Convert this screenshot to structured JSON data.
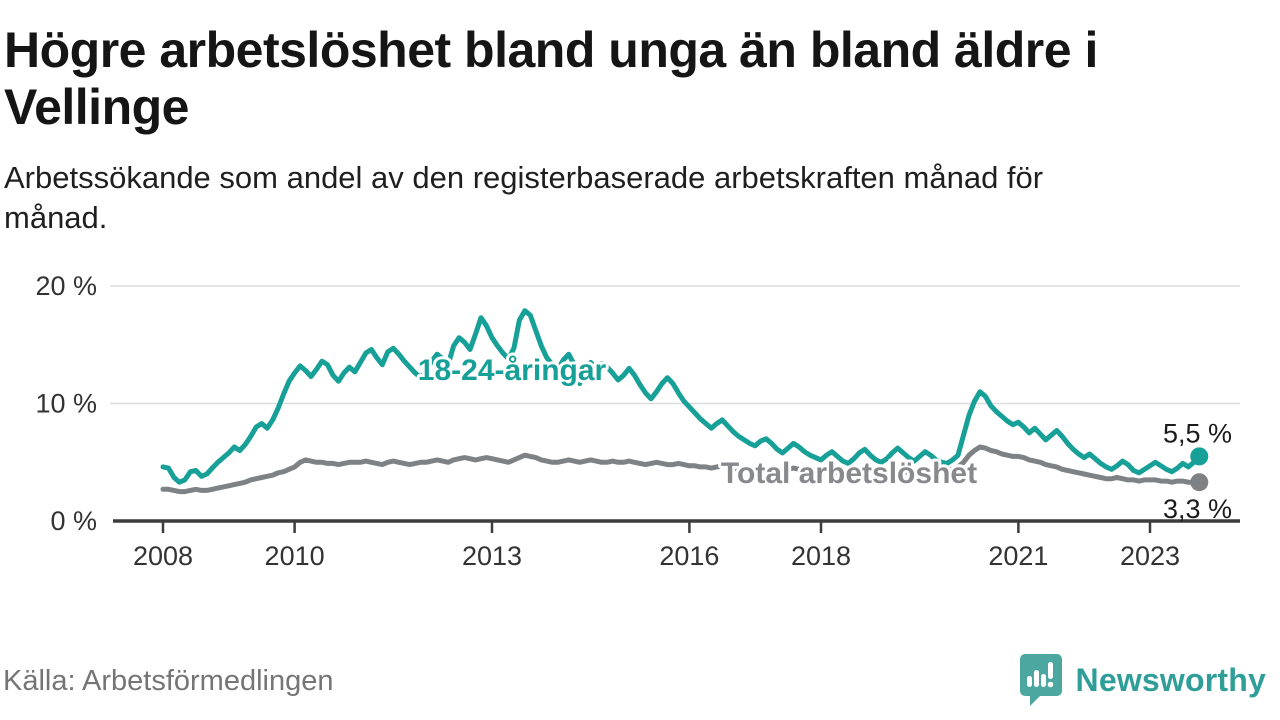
{
  "header": {
    "title": "Högre arbetslöshet bland unga än bland äldre i Vellinge",
    "subtitle": "Arbetssökande som andel av den registerbaserade arbetskraften månad för månad."
  },
  "footer": {
    "source": "Källa: Arbetsförmedlingen",
    "brand": "Newsworthy"
  },
  "colors": {
    "youth_line": "#16a098",
    "total_line": "#7f8285",
    "total_label": "#87898c",
    "grid": "#dcdcdc",
    "axis": "#3c3c3c",
    "axis_text": "#333333",
    "end_label_text": "#1b1b1b",
    "logo_icon": "#4da7a1",
    "logo_text": "#2f9e98"
  },
  "chart_data": {
    "type": "line",
    "title": "Högre arbetslöshet bland unga än bland äldre i Vellinge",
    "xlabel": "",
    "ylabel": "Arbetssökande som andel av den registerbaserade arbetskraften",
    "x_start": "2008-01",
    "x_end": "2023-10",
    "frequency": "monthly",
    "ylim": [
      0,
      22
    ],
    "grid": "horizontal",
    "legend_position": "inline-labels",
    "y_axis": {
      "ticks": [
        {
          "label": "20 %",
          "value": 20
        },
        {
          "label": "10 %",
          "value": 10
        },
        {
          "label": "0 %",
          "value": 0
        }
      ]
    },
    "x_axis": {
      "ticks": [
        2008,
        2010,
        2013,
        2016,
        2018,
        2021,
        2023
      ]
    },
    "series": [
      {
        "name": "18-24-åringar",
        "color": "#16a098",
        "end_label": "5,5 %",
        "end_value": 5.5,
        "values": [
          4.6,
          4.5,
          3.7,
          3.3,
          3.5,
          4.2,
          4.3,
          3.8,
          4.0,
          4.5,
          5.0,
          5.4,
          5.8,
          6.3,
          6.0,
          6.5,
          7.2,
          8.0,
          8.3,
          7.9,
          8.6,
          9.6,
          10.8,
          11.9,
          12.6,
          13.2,
          12.8,
          12.3,
          12.9,
          13.6,
          13.3,
          12.4,
          11.9,
          12.6,
          13.1,
          12.7,
          13.5,
          14.3,
          14.6,
          13.9,
          13.3,
          14.4,
          14.7,
          14.2,
          13.6,
          13.1,
          12.6,
          12.2,
          12.8,
          13.6,
          14.2,
          13.8,
          13.3,
          14.9,
          15.6,
          15.2,
          14.6,
          15.9,
          17.3,
          16.6,
          15.6,
          14.9,
          14.3,
          13.8,
          14.7,
          17.1,
          17.9,
          17.5,
          16.2,
          14.9,
          13.9,
          13.3,
          12.9,
          13.7,
          14.2,
          13.3,
          11.7,
          12.7,
          13.5,
          12.9,
          13.4,
          13.1,
          12.6,
          12.0,
          12.4,
          13.0,
          12.4,
          11.6,
          10.9,
          10.4,
          11.0,
          11.7,
          12.2,
          11.7,
          10.9,
          10.2,
          9.7,
          9.2,
          8.7,
          8.3,
          7.9,
          8.3,
          8.6,
          8.1,
          7.6,
          7.2,
          6.9,
          6.6,
          6.4,
          6.8,
          7.0,
          6.6,
          6.1,
          5.8,
          6.2,
          6.6,
          6.3,
          5.9,
          5.6,
          5.4,
          5.2,
          5.6,
          5.9,
          5.5,
          5.1,
          4.9,
          5.3,
          5.8,
          6.1,
          5.6,
          5.2,
          5.0,
          5.3,
          5.8,
          6.2,
          5.8,
          5.4,
          5.1,
          5.5,
          5.9,
          5.6,
          5.2,
          5.0,
          4.9,
          5.2,
          5.6,
          7.3,
          9.0,
          10.2,
          11.0,
          10.6,
          9.8,
          9.3,
          8.9,
          8.5,
          8.2,
          8.4,
          8.0,
          7.5,
          7.9,
          7.4,
          6.9,
          7.3,
          7.7,
          7.2,
          6.6,
          6.1,
          5.7,
          5.4,
          5.7,
          5.3,
          4.9,
          4.6,
          4.4,
          4.7,
          5.1,
          4.8,
          4.3,
          4.1,
          4.4,
          4.7,
          5.0,
          4.7,
          4.4,
          4.2,
          4.5,
          4.9,
          4.6,
          5.0,
          5.5
        ]
      },
      {
        "name": "Total arbetslöshet",
        "color": "#7f8285",
        "end_label": "3,3 %",
        "end_value": 3.3,
        "values": [
          2.7,
          2.7,
          2.6,
          2.5,
          2.5,
          2.6,
          2.7,
          2.6,
          2.6,
          2.7,
          2.8,
          2.9,
          3.0,
          3.1,
          3.2,
          3.3,
          3.5,
          3.6,
          3.7,
          3.8,
          3.9,
          4.1,
          4.2,
          4.4,
          4.6,
          5.0,
          5.2,
          5.1,
          5.0,
          5.0,
          4.9,
          4.9,
          4.8,
          4.9,
          5.0,
          5.0,
          5.0,
          5.1,
          5.0,
          4.9,
          4.8,
          5.0,
          5.1,
          5.0,
          4.9,
          4.8,
          4.9,
          5.0,
          5.0,
          5.1,
          5.2,
          5.1,
          5.0,
          5.2,
          5.3,
          5.4,
          5.3,
          5.2,
          5.3,
          5.4,
          5.3,
          5.2,
          5.1,
          5.0,
          5.2,
          5.4,
          5.6,
          5.5,
          5.4,
          5.2,
          5.1,
          5.0,
          5.0,
          5.1,
          5.2,
          5.1,
          5.0,
          5.1,
          5.2,
          5.1,
          5.0,
          5.0,
          5.1,
          5.0,
          5.0,
          5.1,
          5.0,
          4.9,
          4.8,
          4.9,
          5.0,
          4.9,
          4.8,
          4.8,
          4.9,
          4.8,
          4.7,
          4.7,
          4.6,
          4.6,
          4.5,
          4.6,
          4.7,
          4.6,
          4.5,
          4.4,
          4.4,
          4.5,
          4.4,
          4.5,
          4.4,
          4.3,
          4.2,
          4.3,
          4.4,
          4.5,
          4.4,
          4.3,
          4.2,
          4.3,
          4.2,
          4.3,
          4.2,
          4.1,
          4.0,
          4.1,
          4.2,
          4.3,
          4.2,
          4.1,
          4.0,
          4.1,
          4.1,
          4.2,
          4.3,
          4.2,
          4.1,
          4.2,
          4.3,
          4.4,
          4.3,
          4.2,
          4.2,
          4.3,
          4.4,
          4.6,
          5.0,
          5.6,
          6.0,
          6.3,
          6.2,
          6.0,
          5.9,
          5.7,
          5.6,
          5.5,
          5.5,
          5.4,
          5.2,
          5.1,
          5.0,
          4.8,
          4.7,
          4.6,
          4.4,
          4.3,
          4.2,
          4.1,
          4.0,
          3.9,
          3.8,
          3.7,
          3.6,
          3.6,
          3.7,
          3.6,
          3.5,
          3.5,
          3.4,
          3.5,
          3.5,
          3.5,
          3.4,
          3.4,
          3.3,
          3.4,
          3.4,
          3.3,
          3.3,
          3.3
        ]
      }
    ]
  }
}
